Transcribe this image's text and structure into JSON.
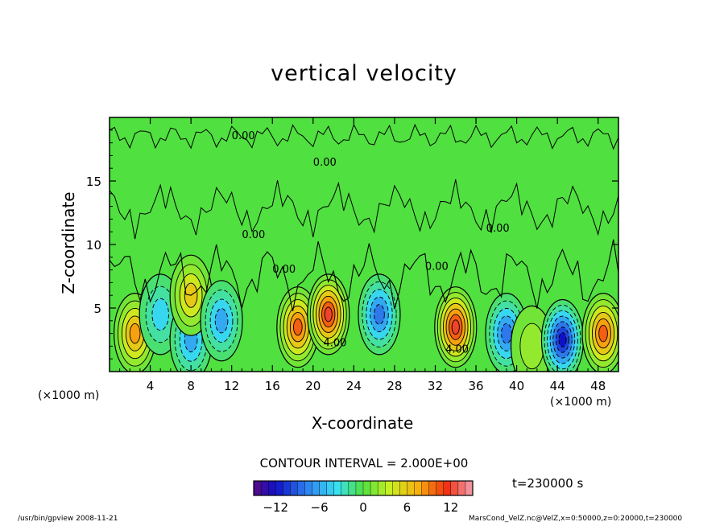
{
  "chart_data": {
    "type": "heatmap",
    "title": "vertical velocity",
    "xlabel": "X-coordinate",
    "ylabel": "Z-coordinate",
    "x_unit_label": "(×1000 m)",
    "x_ticks": [
      4,
      8,
      12,
      16,
      20,
      24,
      28,
      32,
      36,
      40,
      44,
      48
    ],
    "y_ticks": [
      5,
      10,
      15
    ],
    "xlim": [
      0,
      50
    ],
    "ylim": [
      0,
      20
    ],
    "contour_interval": "CONTOUR INTERVAL = 2.000E+00",
    "time": "t=230000 s",
    "colorbar": {
      "range": [
        -15,
        15
      ],
      "tick_labels": [
        "−12",
        "−6",
        "0",
        "6",
        "12"
      ],
      "tick_values": [
        -12,
        -6,
        0,
        6,
        12
      ]
    },
    "contour_labels": [
      "0.00",
      "0.00",
      "0.00",
      "0.00",
      "0.00",
      "0.00",
      "4.00",
      "4.00"
    ],
    "cells": [
      {
        "x": 2.5,
        "z": 3.0,
        "w": 8
      },
      {
        "x": 5.0,
        "z": 4.5,
        "w": -4
      },
      {
        "x": 8.0,
        "z": 2.5,
        "w": -6
      },
      {
        "x": 8.0,
        "z": 6.0,
        "w": 6
      },
      {
        "x": 11.0,
        "z": 4.0,
        "w": -6
      },
      {
        "x": 18.5,
        "z": 3.5,
        "w": 10
      },
      {
        "x": 21.5,
        "z": 4.5,
        "w": 12
      },
      {
        "x": 26.5,
        "z": 4.5,
        "w": -8
      },
      {
        "x": 34.0,
        "z": 3.5,
        "w": 12
      },
      {
        "x": 39.0,
        "z": 3.0,
        "w": -8
      },
      {
        "x": 41.5,
        "z": 2.0,
        "w": 2
      },
      {
        "x": 44.5,
        "z": 2.5,
        "w": -12
      },
      {
        "x": 48.5,
        "z": 3.0,
        "w": 10
      }
    ]
  },
  "footer": {
    "left": "/usr/bin/gpview  2008-11-21",
    "right": "MarsCond_VelZ.nc@VelZ,x=0:50000,z=0:20000,t=230000"
  }
}
